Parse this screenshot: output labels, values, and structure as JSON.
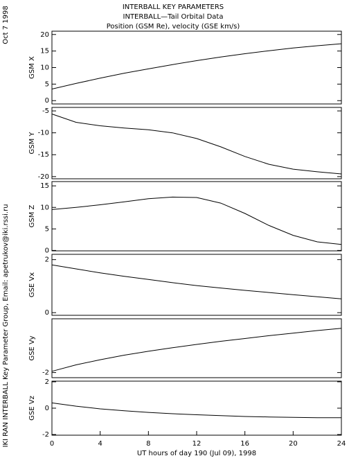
{
  "header": {
    "title": [
      "INTERBALL KEY PARAMETERS",
      "INTERBALL—Tail Orbital Data",
      "Position (GSM Re), velocity (GSE km/s)"
    ],
    "date": "Oct  7 1998",
    "credit": "IKI RAN INTERBALL Key Parameter Group, Email: apetrukov@iki.rssi.ru"
  },
  "chart_data": [
    {
      "type": "line",
      "ylabel": "GSM X",
      "x": [
        0,
        2,
        4,
        6,
        8,
        10,
        12,
        14,
        16,
        18,
        20,
        22,
        24
      ],
      "values": [
        3.5,
        5.2,
        6.8,
        8.3,
        9.6,
        10.9,
        12.1,
        13.2,
        14.2,
        15.1,
        15.9,
        16.6,
        17.2
      ],
      "xlim": [
        0,
        24
      ],
      "ylim": [
        -1,
        21
      ],
      "yticks": [
        0,
        5,
        10,
        15,
        20
      ]
    },
    {
      "type": "line",
      "ylabel": "GSM Y",
      "x": [
        0,
        2,
        4,
        6,
        8,
        10,
        12,
        14,
        16,
        18,
        20,
        22,
        24
      ],
      "values": [
        -5.7,
        -7.6,
        -8.4,
        -8.9,
        -9.3,
        -10.0,
        -11.3,
        -13.2,
        -15.4,
        -17.2,
        -18.3,
        -18.9,
        -19.4
      ],
      "xlim": [
        0,
        24
      ],
      "ylim": [
        -20.5,
        -4.2
      ],
      "yticks": [
        -20,
        -15,
        -10,
        -5
      ]
    },
    {
      "type": "line",
      "ylabel": "GSM Z",
      "x": [
        0,
        2,
        4,
        6,
        8,
        10,
        12,
        14,
        16,
        18,
        20,
        22,
        24
      ],
      "values": [
        9.5,
        10.0,
        10.6,
        11.3,
        12.0,
        12.4,
        12.3,
        11.0,
        8.6,
        5.8,
        3.5,
        2.0,
        1.4
      ],
      "xlim": [
        0,
        24
      ],
      "ylim": [
        -0.1,
        16
      ],
      "yticks": [
        0,
        5,
        10,
        15
      ]
    },
    {
      "type": "line",
      "ylabel": "GSE Vx",
      "x": [
        0,
        2,
        4,
        6,
        8,
        10,
        12,
        14,
        16,
        18,
        20,
        22,
        24
      ],
      "values": [
        1.8,
        1.65,
        1.5,
        1.37,
        1.25,
        1.13,
        1.02,
        0.93,
        0.84,
        0.76,
        0.68,
        0.6,
        0.52
      ],
      "xlim": [
        0,
        24
      ],
      "ylim": [
        -0.1,
        2.2
      ],
      "yticks": [
        0,
        2
      ]
    },
    {
      "type": "line",
      "ylabel": "GSE Vy",
      "x": [
        0,
        2,
        4,
        6,
        8,
        10,
        12,
        14,
        16,
        18,
        20,
        22,
        24
      ],
      "values": [
        -1.95,
        -1.7,
        -1.5,
        -1.32,
        -1.17,
        -1.03,
        -0.9,
        -0.78,
        -0.67,
        -0.56,
        -0.46,
        -0.36,
        -0.27
      ],
      "xlim": [
        0,
        24
      ],
      "ylim": [
        -2.2,
        0.1
      ],
      "yticks": [
        -2
      ]
    },
    {
      "type": "line",
      "ylabel": "GSE Vz",
      "x": [
        0,
        2,
        4,
        6,
        8,
        10,
        12,
        14,
        16,
        18,
        20,
        22,
        24
      ],
      "values": [
        0.4,
        0.15,
        -0.05,
        -0.2,
        -0.32,
        -0.42,
        -0.5,
        -0.57,
        -0.63,
        -0.67,
        -0.7,
        -0.72,
        -0.72
      ],
      "xlim": [
        0,
        24
      ],
      "ylim": [
        -2.05,
        2.05
      ],
      "yticks": [
        -2,
        0,
        2
      ],
      "xticks": [
        0,
        4,
        8,
        12,
        16,
        20,
        24
      ],
      "xlabel": "UT hours of day 190 (Jul 09), 1998"
    }
  ]
}
